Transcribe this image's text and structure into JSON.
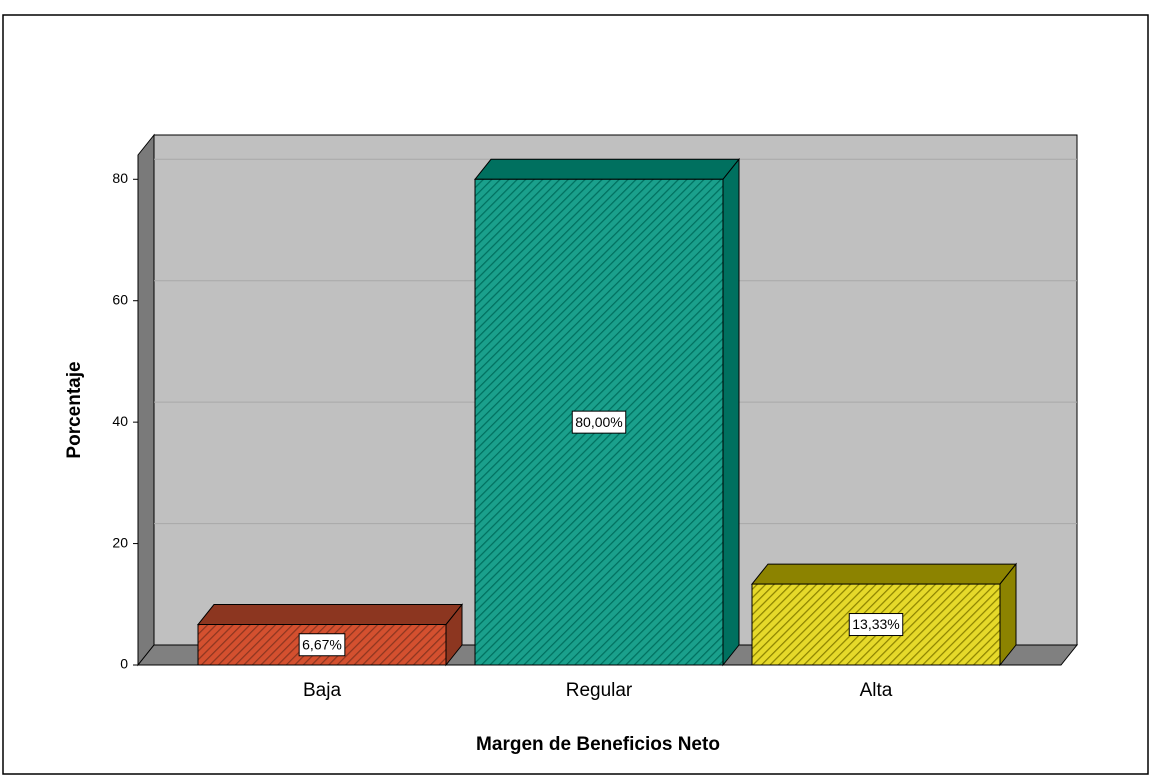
{
  "chart_data": {
    "type": "bar3d",
    "categories": [
      "Baja",
      "Regular",
      "Alta"
    ],
    "values": [
      6.67,
      80,
      13.33
    ],
    "value_labels": [
      "6,67%",
      "80,00%",
      "13,33%"
    ],
    "colors": [
      "#d4502f",
      "#1aa08c",
      "#e6d92a"
    ],
    "side_colors": [
      "#8c3620",
      "#00705f",
      "#8c8300"
    ],
    "xlabel": "Margen de Beneficios Neto",
    "ylabel": "Porcentaje",
    "ylim": [
      0,
      84
    ],
    "yticks": [
      0,
      20,
      40,
      60,
      80
    ],
    "grid": true
  }
}
